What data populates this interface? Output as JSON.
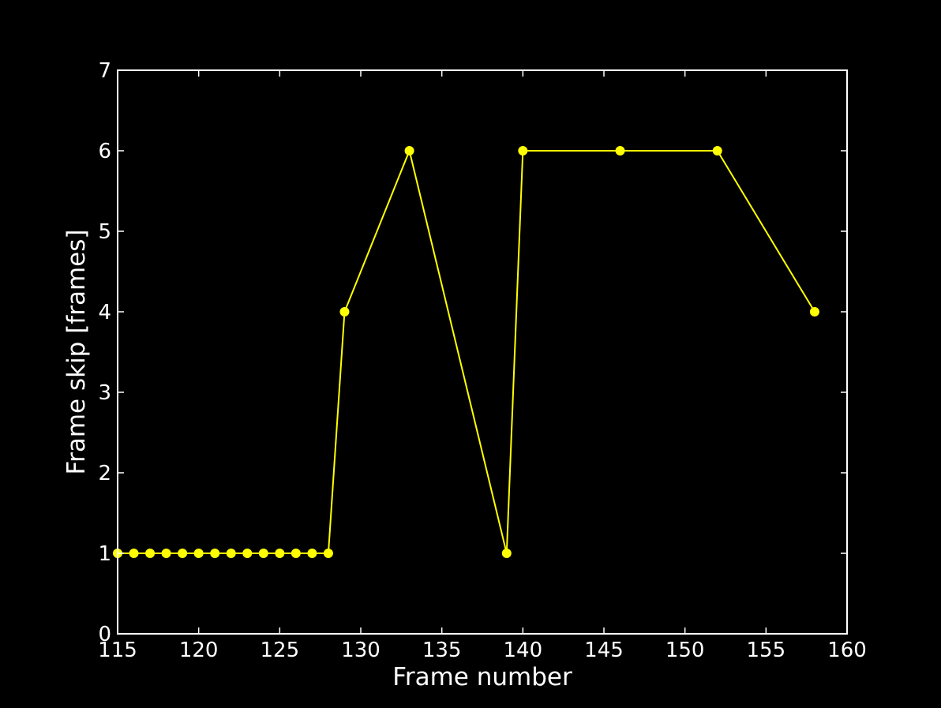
{
  "chart_data": {
    "type": "line",
    "title": "",
    "xlabel": "Frame number",
    "ylabel": "Frame skip [frames]",
    "xlim": [
      115,
      160
    ],
    "ylim": [
      0,
      7
    ],
    "xticks": [
      "115",
      "120",
      "125",
      "130",
      "135",
      "140",
      "145",
      "150",
      "155",
      "160"
    ],
    "yticks": [
      "0",
      "1",
      "2",
      "3",
      "4",
      "5",
      "6",
      "7"
    ],
    "grid": false,
    "legend": "none",
    "colors": {
      "background": "#000000",
      "axes": "#ffffff",
      "series": "#ffff00",
      "marker_edge": "#ffff00"
    },
    "series": [
      {
        "x": [
          115,
          116,
          117,
          118,
          119,
          120,
          121,
          122,
          123,
          124,
          125,
          126,
          127,
          128,
          129,
          133,
          139,
          140,
          146,
          152,
          158
        ],
        "y": [
          1,
          1,
          1,
          1,
          1,
          1,
          1,
          1,
          1,
          1,
          1,
          1,
          1,
          1,
          4,
          6,
          1,
          6,
          6,
          6,
          4
        ]
      }
    ]
  }
}
